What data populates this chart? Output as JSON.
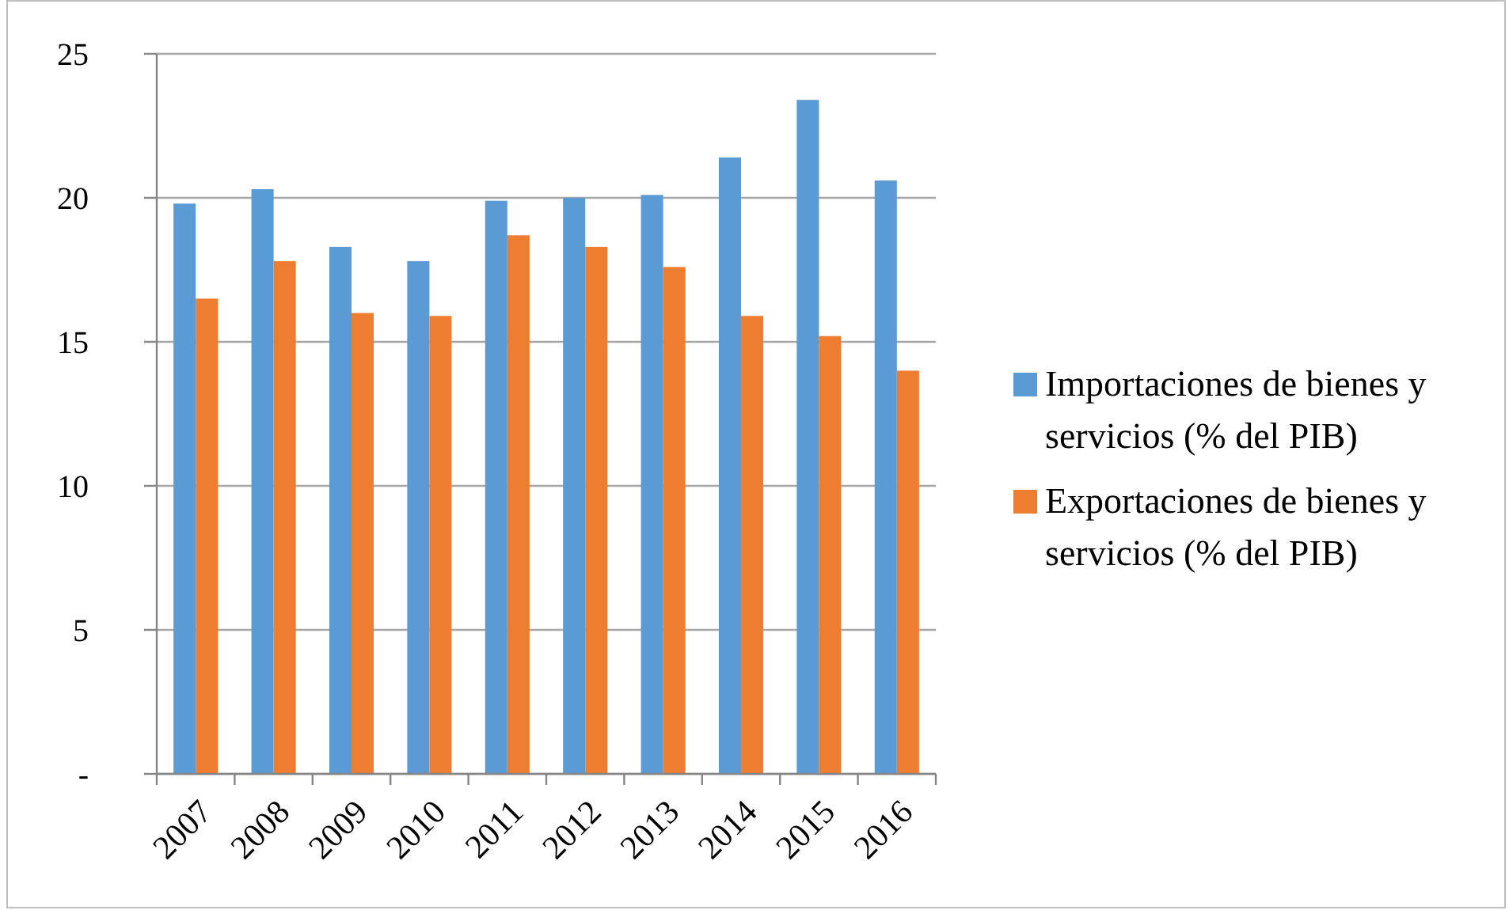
{
  "chart_data": {
    "type": "bar",
    "categories": [
      "2007",
      "2008",
      "2009",
      "2010",
      "2011",
      "2012",
      "2013",
      "2014",
      "2015",
      "2016"
    ],
    "series": [
      {
        "name": "Importaciones de bienes y servicios (% del PIB)",
        "color": "#5b9bd5",
        "values": [
          19.8,
          20.3,
          18.3,
          17.8,
          19.9,
          20.0,
          20.1,
          21.4,
          23.4,
          20.6
        ]
      },
      {
        "name": "Exportaciones de bienes y servicios (% del PIB)",
        "color": "#ed7d31",
        "values": [
          16.5,
          17.8,
          16.0,
          15.9,
          18.7,
          18.3,
          17.6,
          15.9,
          15.2,
          14.0
        ]
      }
    ],
    "ylim": [
      0,
      25
    ],
    "yticks": [
      {
        "value": 0,
        "label": "-"
      },
      5,
      10,
      15,
      20,
      25
    ],
    "grid": "y",
    "legend": "right"
  }
}
